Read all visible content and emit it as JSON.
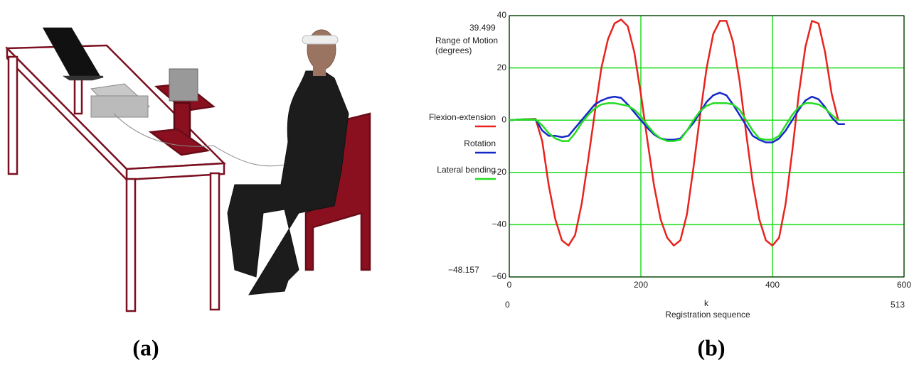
{
  "chart_data": {
    "type": "line",
    "y_label": [
      "Range of Motion",
      "(degrees)"
    ],
    "x_label": "Registration sequence",
    "annotations": [
      "39.499",
      "−48.157",
      "0",
      "k",
      "513"
    ],
    "x": [
      0,
      20,
      40,
      50,
      60,
      70,
      80,
      90,
      100,
      110,
      120,
      130,
      140,
      150,
      160,
      170,
      180,
      190,
      200,
      210,
      220,
      230,
      240,
      250,
      260,
      270,
      280,
      290,
      300,
      310,
      320,
      330,
      340,
      350,
      360,
      370,
      380,
      390,
      400,
      410,
      420,
      430,
      440,
      450,
      460,
      470,
      480,
      490,
      500,
      510
    ],
    "series": [
      {
        "name": "Flexion-extension",
        "color": "#e8231e",
        "values": [
          0,
          0.3,
          0.5,
          -8,
          -25,
          -38,
          -46,
          -48,
          -44,
          -32,
          -15,
          3,
          20,
          31,
          37,
          38.5,
          36,
          26,
          10,
          -8,
          -25,
          -38,
          -45,
          -48,
          -46,
          -36,
          -18,
          2,
          20,
          33,
          38,
          38,
          30,
          15,
          -5,
          -24,
          -38,
          -46,
          -48,
          -45,
          -32,
          -12,
          10,
          28,
          38,
          37,
          26,
          10,
          0,
          null
        ]
      },
      {
        "name": "Rotation",
        "color": "#1428c8",
        "values": [
          0,
          0.3,
          0.3,
          -4,
          -6,
          -6,
          -6.5,
          -6,
          -3,
          0,
          3,
          6,
          7.5,
          8.5,
          9,
          8.5,
          6,
          3,
          0,
          -3,
          -5.5,
          -7,
          -7.5,
          -7.5,
          -7,
          -4,
          -1,
          3,
          7,
          9.5,
          10.5,
          9.5,
          6,
          2,
          -2,
          -6,
          -7.5,
          -8.5,
          -8.5,
          -7,
          -4,
          0,
          4,
          7.5,
          9,
          8,
          5,
          1,
          -1.5,
          -1.5
        ]
      },
      {
        "name": "Lateral bending",
        "color": "#22dd22",
        "values": [
          0,
          0.3,
          0.3,
          -2,
          -5,
          -7,
          -8,
          -8,
          -5,
          -1,
          2,
          4.5,
          6,
          6.5,
          6.5,
          6,
          5.5,
          4,
          1.5,
          -2,
          -5,
          -7,
          -8,
          -8,
          -7.5,
          -4,
          0,
          3.5,
          5.5,
          6.5,
          6.5,
          6.5,
          6,
          4,
          0,
          -4,
          -7,
          -7.5,
          -7.5,
          -6,
          -2,
          2,
          5,
          6.5,
          6.5,
          6,
          4.5,
          2,
          0,
          null
        ]
      }
    ],
    "xlim": [
      0,
      600
    ],
    "xticks": [
      0,
      200,
      400,
      600
    ],
    "ylim": [
      -60,
      40
    ],
    "yticks": [
      {
        "value": -60,
        "label": "−60"
      },
      {
        "value": -40,
        "label": "−40"
      },
      {
        "value": -20,
        "label": "−20"
      },
      0,
      20,
      40
    ],
    "grid": true,
    "grid_color": "#22dd22"
  },
  "panel_labels": [
    "(a)",
    "(b)"
  ]
}
